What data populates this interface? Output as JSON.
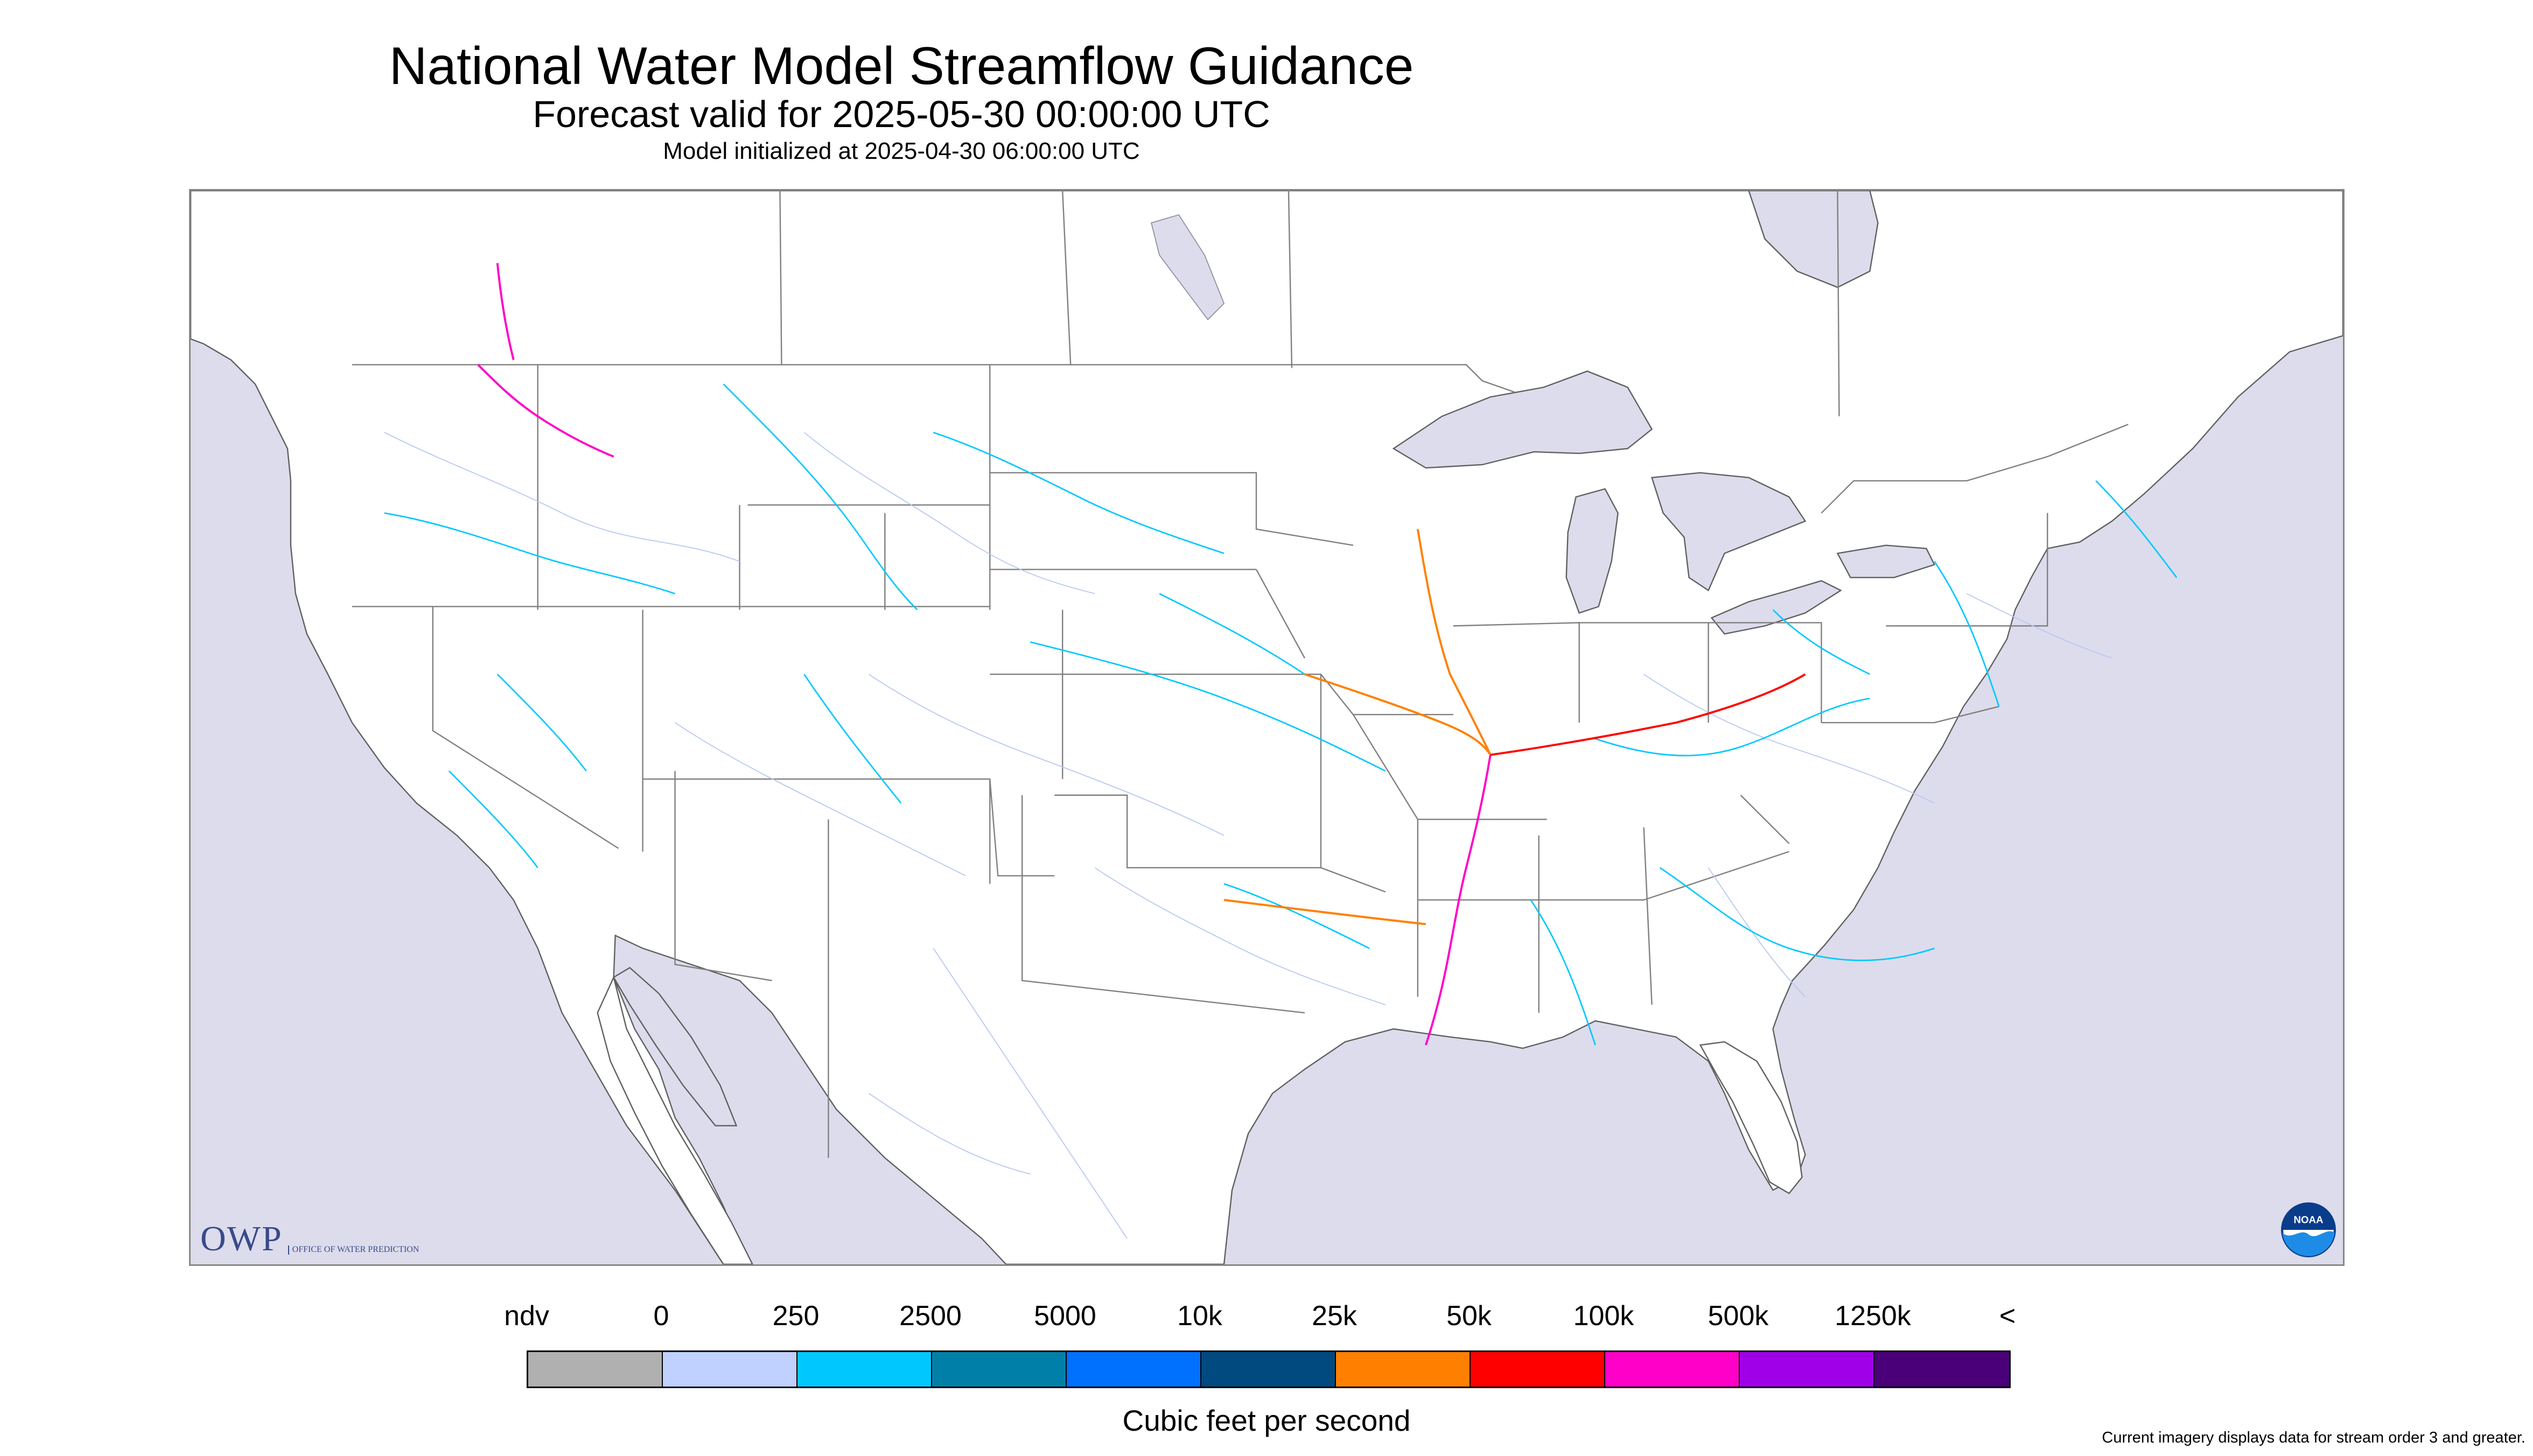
{
  "title": "National Water Model Streamflow Guidance",
  "subtitle": "Forecast valid for 2025-05-30 00:00:00 UTC",
  "init_line": "Model initialized at 2025-04-30 06:00:00 UTC",
  "logos": {
    "owp_letters": "OWP",
    "owp_sub": "OFFICE OF WATER PREDICTION",
    "noaa": "NOAA"
  },
  "legend": {
    "labels": [
      "ndv",
      "0",
      "250",
      "2500",
      "5000",
      "10k",
      "25k",
      "50k",
      "100k",
      "500k",
      "1250k",
      "<"
    ],
    "colors": [
      "#b0b0b0",
      "#c0d0ff",
      "#00c8ff",
      "#0080a8",
      "#0070ff",
      "#004a80",
      "#ff8000",
      "#ff0000",
      "#ff00c8",
      "#a000e8",
      "#4a0078"
    ],
    "units": "Cubic feet per second"
  },
  "footnote": "Current imagery displays data for stream order 3 and greater.",
  "map_colors": {
    "ocean": "#dcdcec",
    "land": "#ffffff",
    "lakes": "#dcdcec",
    "borders": "#808080",
    "low_flow": "#b8c8f0",
    "mid_flow": "#00c8ff",
    "high_flow": "#ff8000",
    "very_high_flow": "#ff00c8"
  }
}
